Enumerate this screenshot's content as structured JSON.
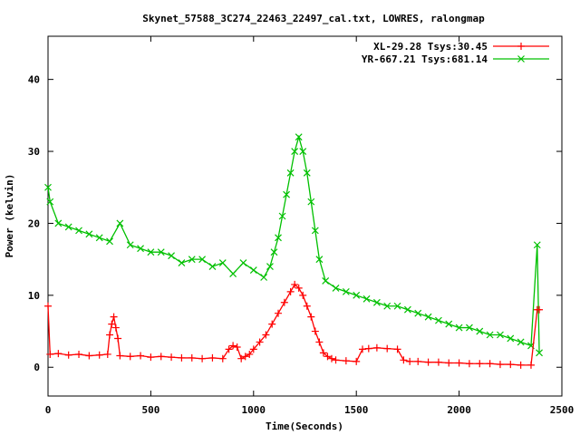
{
  "chart_data": {
    "type": "scatter",
    "title": "Skynet_57588_3C274_22463_22497_cal.txt, LOWRES, ralongmap",
    "xlabel": "Time(Seconds)",
    "ylabel": "Power (kelvin)",
    "xlim": [
      0,
      2500
    ],
    "ylim": [
      -4,
      46
    ],
    "xticks": [
      0,
      500,
      1000,
      1500,
      2000,
      2500
    ],
    "yticks": [
      0,
      10,
      20,
      30,
      40
    ],
    "legend_position": "top-right",
    "grid": false,
    "series": [
      {
        "name": "XL-29.28 Tsys:30.45",
        "color": "#ff0000",
        "marker": "plus",
        "x": [
          0,
          10,
          50,
          100,
          150,
          200,
          250,
          290,
          300,
          310,
          320,
          330,
          340,
          350,
          400,
          450,
          500,
          550,
          600,
          650,
          700,
          750,
          800,
          850,
          880,
          900,
          920,
          940,
          960,
          980,
          1000,
          1030,
          1060,
          1090,
          1120,
          1150,
          1180,
          1200,
          1220,
          1240,
          1260,
          1280,
          1300,
          1320,
          1340,
          1360,
          1380,
          1400,
          1450,
          1500,
          1530,
          1560,
          1600,
          1650,
          1700,
          1730,
          1760,
          1800,
          1850,
          1900,
          1950,
          2000,
          2050,
          2100,
          2150,
          2200,
          2250,
          2300,
          2350,
          2380,
          2390
        ],
        "y": [
          8.5,
          1.8,
          1.9,
          1.7,
          1.8,
          1.6,
          1.7,
          1.8,
          4.5,
          6.0,
          7.0,
          5.5,
          4.0,
          1.6,
          1.5,
          1.6,
          1.4,
          1.5,
          1.4,
          1.3,
          1.3,
          1.2,
          1.3,
          1.2,
          2.5,
          3.0,
          2.8,
          1.2,
          1.5,
          1.8,
          2.5,
          3.5,
          4.5,
          6.0,
          7.5,
          9.0,
          10.5,
          11.5,
          11.0,
          10.0,
          8.5,
          7.0,
          5.0,
          3.5,
          2.0,
          1.5,
          1.2,
          1.0,
          0.9,
          0.8,
          2.5,
          2.6,
          2.7,
          2.6,
          2.5,
          1.0,
          0.8,
          0.8,
          0.7,
          0.7,
          0.6,
          0.6,
          0.5,
          0.5,
          0.5,
          0.4,
          0.4,
          0.3,
          0.3,
          8.0,
          8.0
        ]
      },
      {
        "name": "YR-667.21 Tsys:681.14",
        "color": "#00c000",
        "marker": "cross",
        "x": [
          0,
          10,
          50,
          100,
          150,
          200,
          250,
          300,
          350,
          400,
          450,
          500,
          550,
          600,
          650,
          700,
          750,
          800,
          850,
          900,
          950,
          1000,
          1050,
          1080,
          1100,
          1120,
          1140,
          1160,
          1180,
          1200,
          1220,
          1240,
          1260,
          1280,
          1300,
          1320,
          1350,
          1400,
          1450,
          1500,
          1550,
          1600,
          1650,
          1700,
          1750,
          1800,
          1850,
          1900,
          1950,
          2000,
          2050,
          2100,
          2150,
          2200,
          2250,
          2300,
          2350,
          2380,
          2390
        ],
        "y": [
          25.0,
          23.0,
          20.0,
          19.5,
          19.0,
          18.5,
          18.0,
          17.5,
          20.0,
          17.0,
          16.5,
          16.0,
          16.0,
          15.5,
          14.5,
          15.0,
          15.0,
          14.0,
          14.5,
          13.0,
          14.5,
          13.5,
          12.5,
          14.0,
          16.0,
          18.0,
          21.0,
          24.0,
          27.0,
          30.0,
          32.0,
          30.0,
          27.0,
          23.0,
          19.0,
          15.0,
          12.0,
          11.0,
          10.5,
          10.0,
          9.5,
          9.0,
          8.5,
          8.5,
          8.0,
          7.5,
          7.0,
          6.5,
          6.0,
          5.5,
          5.5,
          5.0,
          4.5,
          4.5,
          4.0,
          3.5,
          3.0,
          17.0,
          2.0
        ]
      }
    ]
  }
}
